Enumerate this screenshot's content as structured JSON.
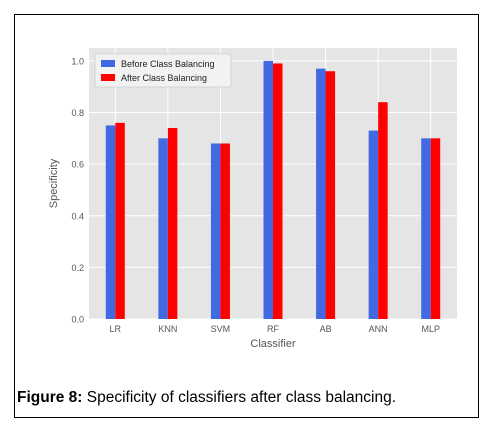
{
  "chart_data": {
    "type": "bar",
    "xlabel": "Classifier",
    "ylabel": "Specificity",
    "ylim": [
      0.0,
      1.05
    ],
    "yticks": [
      "0.0",
      "0.2",
      "0.4",
      "0.6",
      "0.8",
      "1.0"
    ],
    "categories": [
      "LR",
      "KNN",
      "SVM",
      "RF",
      "AB",
      "ANN",
      "MLP"
    ],
    "series": [
      {
        "name": "Before Class Balancing",
        "color": "#4169e1",
        "values": [
          0.75,
          0.7,
          0.68,
          1.0,
          0.97,
          0.73,
          0.7
        ]
      },
      {
        "name": "After Class Balancing",
        "color": "#ff0000",
        "values": [
          0.76,
          0.74,
          0.68,
          0.99,
          0.96,
          0.84,
          0.7
        ]
      }
    ],
    "grid": true,
    "legend_position": "top-left",
    "background": "#e5e5e5"
  },
  "caption": {
    "label": "Figure 8:",
    "text": " Specificity of classifiers after class balancing."
  }
}
